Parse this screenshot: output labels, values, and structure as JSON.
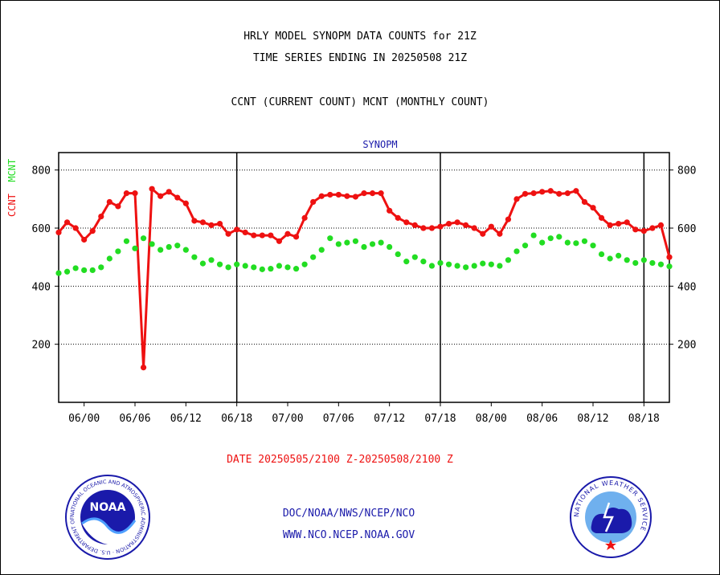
{
  "titles": {
    "line1": "HRLY MODEL SYNOPM DATA COUNTS for 21Z",
    "line2": "TIME SERIES ENDING IN 20250508 21Z",
    "line3": "CCNT (CURRENT COUNT) MCNT (MONTHLY COUNT)"
  },
  "footer": {
    "date_range": "DATE 20250505/2100 Z-20250508/2100 Z",
    "org_path": "DOC/NOAA/NWS/NCEP/NCO",
    "website": "WWW.NCO.NCEP.NOAA.GOV"
  },
  "logos": {
    "noaa_text": "NOAA",
    "noaa_ring": "NATIONAL OCEANIC AND ATMOSPHERIC ADMINISTRATION · U.S. DEPARTMENT OF COMMERCE",
    "nws_ring": "NATIONAL WEATHER SERVICE"
  },
  "colors": {
    "ccnt": "#ee1111",
    "mcnt": "#22dd22",
    "title_blue": "#1a1aaa",
    "footer_red": "#ee1111",
    "footer_blue": "#1a1aaa"
  },
  "chart_data": {
    "type": "line",
    "title": "SYNOPM",
    "ylabel_ccnt": "CCNT",
    "ylabel_mcnt": "MCNT",
    "xlabel": "DATE 20250505/2100 Z-20250508/2100 Z",
    "ylim": [
      0,
      860
    ],
    "yticks": [
      200,
      400,
      600,
      800
    ],
    "xlim": [
      0,
      72
    ],
    "x_tick_positions_hours": [
      3,
      9,
      15,
      21,
      27,
      33,
      39,
      45,
      51,
      57,
      63,
      69
    ],
    "x_tick_labels": [
      "06/00",
      "06/06",
      "06/12",
      "06/18",
      "07/00",
      "07/06",
      "07/12",
      "07/18",
      "08/00",
      "08/06",
      "08/12",
      "08/18"
    ],
    "day_separators_hours": [
      21,
      45,
      69
    ],
    "grid": "horizontal dotted",
    "x_hours": [
      0,
      1,
      2,
      3,
      4,
      5,
      6,
      7,
      8,
      9,
      10,
      11,
      12,
      13,
      14,
      15,
      16,
      17,
      18,
      19,
      20,
      21,
      22,
      23,
      24,
      25,
      26,
      27,
      28,
      29,
      30,
      31,
      32,
      33,
      34,
      35,
      36,
      37,
      38,
      39,
      40,
      41,
      42,
      43,
      44,
      45,
      46,
      47,
      48,
      49,
      50,
      51,
      52,
      53,
      54,
      55,
      56,
      57,
      58,
      59,
      60,
      61,
      62,
      63,
      64,
      65,
      66,
      67,
      68,
      69,
      70,
      71,
      72
    ],
    "series": [
      {
        "name": "CCNT",
        "values": [
          585,
          620,
          600,
          560,
          590,
          640,
          690,
          675,
          720,
          720,
          120,
          735,
          710,
          725,
          705,
          685,
          625,
          620,
          610,
          615,
          580,
          595,
          585,
          575,
          575,
          575,
          555,
          580,
          570,
          635,
          690,
          710,
          715,
          715,
          710,
          708,
          720,
          720,
          720,
          660,
          635,
          620,
          610,
          600,
          600,
          605,
          615,
          620,
          610,
          600,
          580,
          605,
          580,
          630,
          700,
          718,
          720,
          725,
          728,
          718,
          720,
          728,
          690,
          670,
          635,
          610,
          615,
          620,
          595,
          590,
          600,
          610,
          500
        ]
      },
      {
        "name": "MCNT",
        "values": [
          445,
          450,
          462,
          455,
          455,
          465,
          495,
          520,
          555,
          530,
          565,
          545,
          525,
          535,
          540,
          525,
          500,
          478,
          490,
          475,
          465,
          475,
          470,
          465,
          458,
          460,
          470,
          465,
          460,
          475,
          500,
          525,
          565,
          545,
          550,
          555,
          535,
          545,
          550,
          535,
          510,
          485,
          500,
          485,
          470,
          480,
          475,
          470,
          465,
          470,
          478,
          475,
          470,
          490,
          520,
          540,
          575,
          550,
          565,
          570,
          550,
          548,
          555,
          540,
          510,
          495,
          505,
          490,
          480,
          490,
          480,
          475,
          468
        ]
      }
    ]
  }
}
